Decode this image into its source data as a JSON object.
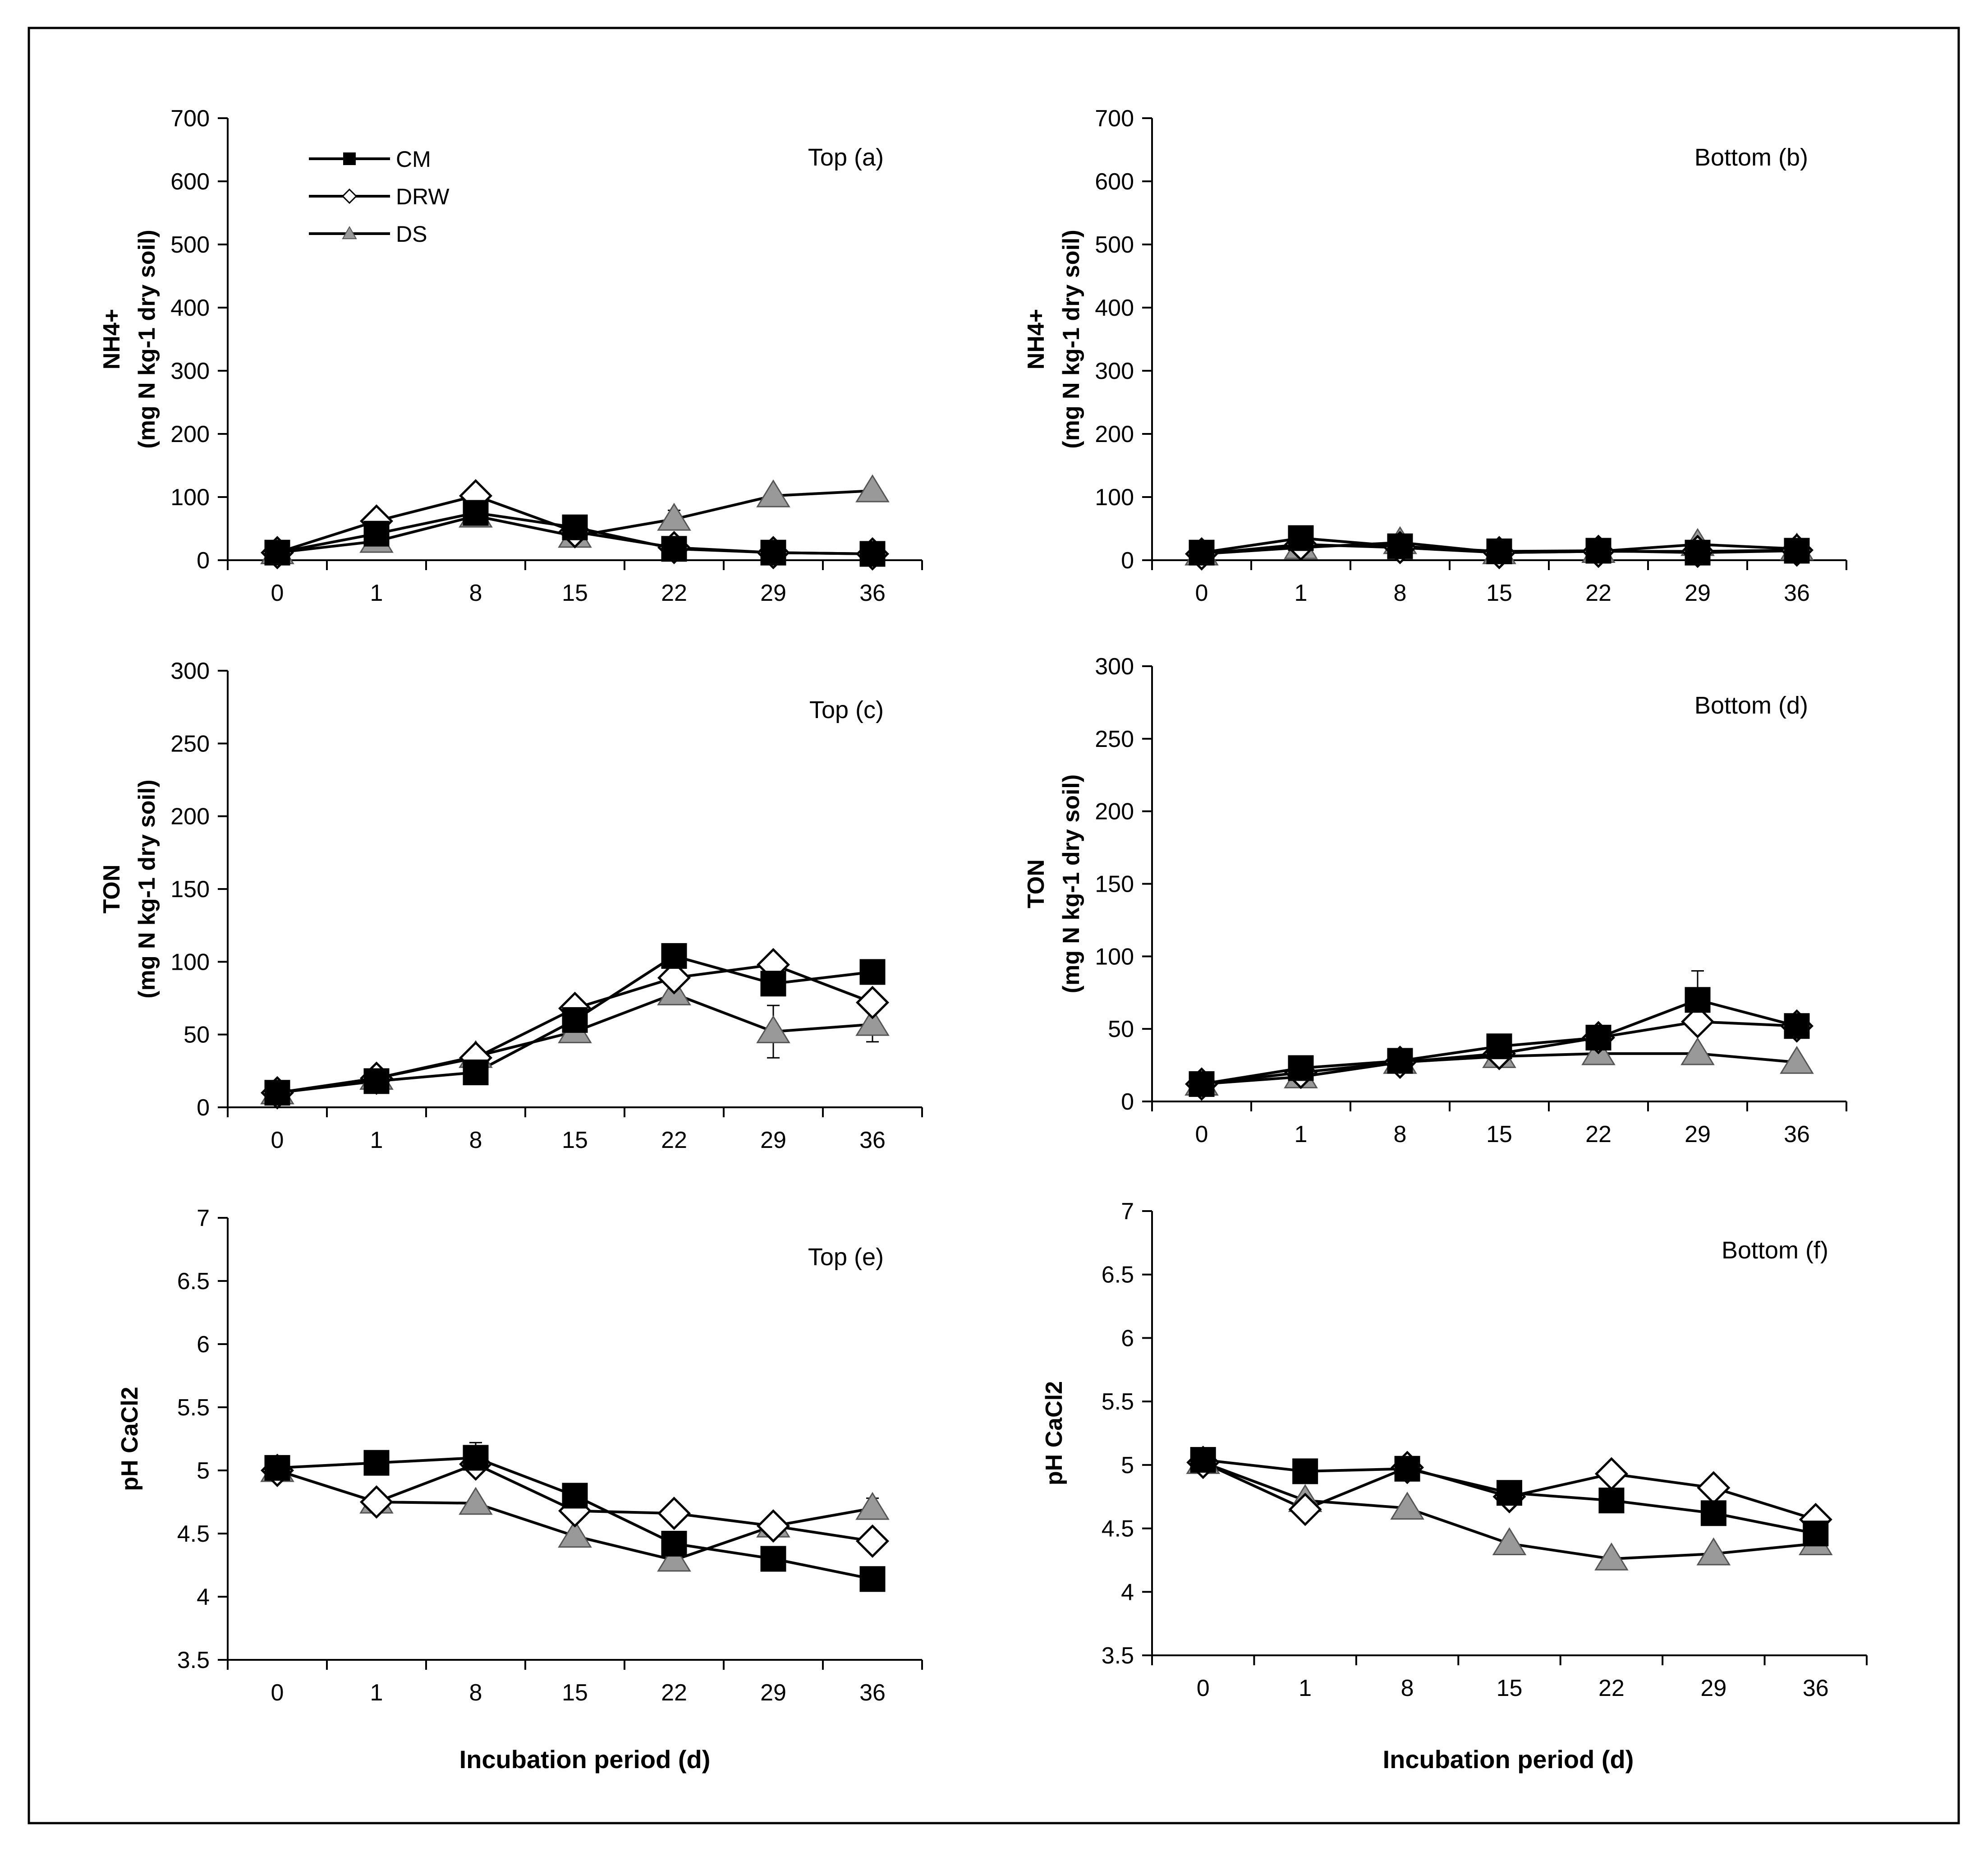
{
  "x_axis_label": "Incubation period (d)",
  "legend": [
    {
      "key": "CM",
      "label": "CM",
      "marker": "square",
      "fill": "#000000"
    },
    {
      "key": "DRW",
      "label": "DRW",
      "marker": "diamond",
      "fill": "#ffffff"
    },
    {
      "key": "DS",
      "label": "DS",
      "marker": "triangle",
      "fill": "#999999"
    }
  ],
  "colors": {
    "line": "#000000",
    "triangle_fill": "#999999",
    "square_fill": "#000000",
    "diamond_fill": "#ffffff"
  },
  "chart_data": [
    {
      "id": "a",
      "type": "line",
      "title": "Top (a)",
      "ylabel_lines": [
        "NH4+",
        "(mg N kg-1 dry soil)"
      ],
      "categories": [
        "0",
        "1",
        "8",
        "15",
        "22",
        "29",
        "36"
      ],
      "ylim": [
        0,
        700
      ],
      "yticks": [
        0,
        100,
        200,
        300,
        400,
        500,
        600,
        700
      ],
      "ytick_labels": [
        "0",
        "100",
        "200",
        "300",
        "400",
        "500",
        "600",
        "700"
      ],
      "series": [
        {
          "name": "CM",
          "values": [
            12,
            42,
            75,
            52,
            18,
            12,
            10
          ]
        },
        {
          "name": "DRW",
          "values": [
            12,
            62,
            102,
            45,
            20,
            12,
            10
          ]
        },
        {
          "name": "DS",
          "values": [
            12,
            30,
            70,
            38,
            65,
            102,
            110
          ]
        }
      ],
      "errors": [
        {
          "series": "DS",
          "index": 4,
          "value": 14
        }
      ]
    },
    {
      "id": "b",
      "type": "line",
      "title": "Bottom (b)",
      "ylabel_lines": [
        "NH4+",
        "(mg N kg-1 dry soil)"
      ],
      "categories": [
        "0",
        "1",
        "8",
        "15",
        "22",
        "29",
        "36"
      ],
      "ylim": [
        0,
        700
      ],
      "yticks": [
        0,
        100,
        200,
        300,
        400,
        500,
        600,
        700
      ],
      "ytick_labels": [
        "0",
        "100",
        "200",
        "300",
        "400",
        "500",
        "600",
        "700"
      ],
      "series": [
        {
          "name": "CM",
          "values": [
            12,
            35,
            22,
            14,
            15,
            12,
            15
          ]
        },
        {
          "name": "DRW",
          "values": [
            10,
            25,
            20,
            12,
            14,
            14,
            16
          ]
        },
        {
          "name": "DS",
          "values": [
            10,
            20,
            28,
            12,
            14,
            25,
            18
          ]
        }
      ],
      "errors": []
    },
    {
      "id": "c",
      "type": "line",
      "title": "Top (c)",
      "ylabel_lines": [
        "TON",
        "(mg N kg-1 dry soil)"
      ],
      "categories": [
        "0",
        "1",
        "8",
        "15",
        "22",
        "29",
        "36"
      ],
      "ylim": [
        0,
        300
      ],
      "yticks": [
        0,
        50,
        100,
        150,
        200,
        250,
        300
      ],
      "ytick_labels": [
        "0",
        "50",
        "100",
        "150",
        "200",
        "250",
        "300"
      ],
      "series": [
        {
          "name": "CM",
          "values": [
            10,
            18,
            24,
            60,
            104,
            85,
            93
          ]
        },
        {
          "name": "DRW",
          "values": [
            10,
            20,
            34,
            68,
            89,
            98,
            72
          ]
        },
        {
          "name": "DS",
          "values": [
            10,
            20,
            35,
            52,
            78,
            52,
            57
          ]
        }
      ],
      "errors": [
        {
          "series": "DS",
          "index": 5,
          "value": 18
        },
        {
          "series": "DS",
          "index": 6,
          "value": 12
        }
      ]
    },
    {
      "id": "d",
      "type": "line",
      "title": "Bottom (d)",
      "ylabel_lines": [
        "TON",
        "(mg N kg-1 dry soil)"
      ],
      "categories": [
        "0",
        "1",
        "8",
        "15",
        "22",
        "29",
        "36"
      ],
      "ylim": [
        0,
        300
      ],
      "yticks": [
        0,
        50,
        100,
        150,
        200,
        250,
        300
      ],
      "ytick_labels": [
        "0",
        "50",
        "100",
        "150",
        "200",
        "250",
        "300"
      ],
      "series": [
        {
          "name": "CM",
          "values": [
            12,
            23,
            28,
            38,
            44,
            70,
            52
          ]
        },
        {
          "name": "DRW",
          "values": [
            12,
            20,
            27,
            33,
            44,
            55,
            52
          ]
        },
        {
          "name": "DS",
          "values": [
            12,
            17,
            27,
            31,
            33,
            33,
            27
          ]
        }
      ],
      "errors": [
        {
          "series": "CM",
          "index": 5,
          "value": 20
        }
      ]
    },
    {
      "id": "e",
      "type": "line",
      "title": "Top (e)",
      "ylabel_lines": [
        "pH CaCl2"
      ],
      "categories": [
        "0",
        "1",
        "8",
        "15",
        "22",
        "29",
        "36"
      ],
      "ylim": [
        3.5,
        7
      ],
      "yticks": [
        3.5,
        4,
        4.5,
        5,
        5.5,
        6,
        6.5,
        7
      ],
      "ytick_labels": [
        "3.5",
        "4",
        "4.5",
        "5",
        "5.5",
        "6",
        "6.5",
        "7"
      ],
      "series": [
        {
          "name": "CM",
          "values": [
            5.02,
            5.06,
            5.1,
            4.8,
            4.42,
            4.3,
            4.14
          ]
        },
        {
          "name": "DRW",
          "values": [
            5.0,
            4.75,
            5.05,
            4.68,
            4.66,
            4.56,
            4.44
          ]
        },
        {
          "name": "DS",
          "values": [
            5.0,
            4.75,
            4.74,
            4.48,
            4.29,
            4.56,
            4.7
          ]
        }
      ],
      "errors": [
        {
          "series": "CM",
          "index": 2,
          "value": 0.12
        },
        {
          "series": "DS",
          "index": 6,
          "value": 0.08
        }
      ]
    },
    {
      "id": "f",
      "type": "line",
      "title": "Bottom (f)",
      "ylabel_lines": [
        "pH CaCl2"
      ],
      "categories": [
        "0",
        "1",
        "8",
        "15",
        "22",
        "29",
        "36"
      ],
      "ylim": [
        3.5,
        7
      ],
      "yticks": [
        3.5,
        4,
        4.5,
        5,
        5.5,
        6,
        6.5,
        7
      ],
      "ytick_labels": [
        "3.5",
        "4",
        "4.5",
        "5",
        "5.5",
        "6",
        "6.5",
        "7"
      ],
      "series": [
        {
          "name": "CM",
          "values": [
            5.04,
            4.95,
            4.97,
            4.78,
            4.72,
            4.62,
            4.46
          ]
        },
        {
          "name": "DRW",
          "values": [
            5.02,
            4.65,
            4.98,
            4.75,
            4.93,
            4.82,
            4.57
          ]
        },
        {
          "name": "DS",
          "values": [
            5.02,
            4.72,
            4.66,
            4.38,
            4.26,
            4.3,
            4.38
          ]
        }
      ],
      "errors": [
        {
          "series": "DRW",
          "index": 2,
          "value": 0.08
        }
      ]
    }
  ]
}
